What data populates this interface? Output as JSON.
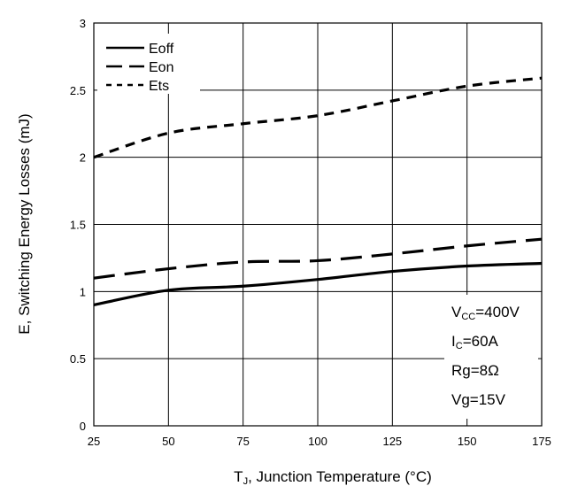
{
  "chart_data": {
    "type": "line",
    "title": "",
    "xlabel": {
      "main": "T",
      "sub": "J",
      "rest": ", Junction Temperature (°C)"
    },
    "ylabel": "E, Switching Energy Losses (mJ)",
    "xlim": [
      25,
      175
    ],
    "ylim": [
      0,
      3
    ],
    "xticks": [
      "25",
      "50",
      "75",
      "100",
      "125",
      "150",
      "175"
    ],
    "yticks": [
      "0",
      "0.5",
      "1",
      "1.5",
      "2",
      "2.5",
      "3"
    ],
    "grid": true,
    "legend_position": "top-left",
    "series": [
      {
        "name": "Eoff",
        "style": "solid",
        "x": [
          25,
          50,
          75,
          100,
          125,
          150,
          175
        ],
        "y": [
          0.9,
          1.01,
          1.04,
          1.09,
          1.15,
          1.19,
          1.21
        ]
      },
      {
        "name": "Eon",
        "style": "long-dash",
        "x": [
          25,
          50,
          75,
          100,
          125,
          150,
          175
        ],
        "y": [
          1.1,
          1.17,
          1.22,
          1.23,
          1.28,
          1.34,
          1.39
        ]
      },
      {
        "name": "Ets",
        "style": "short-dash",
        "x": [
          25,
          50,
          75,
          100,
          125,
          150,
          175
        ],
        "y": [
          2.0,
          2.18,
          2.25,
          2.31,
          2.42,
          2.53,
          2.59
        ]
      }
    ],
    "conditions": [
      {
        "main": "V",
        "sub": "CC",
        "rest": "=400V"
      },
      {
        "main": "I",
        "sub": "C",
        "rest": "=60A"
      },
      {
        "main": "Rg=8Ω",
        "sub": "",
        "rest": ""
      },
      {
        "main": "Vg=15V",
        "sub": "",
        "rest": ""
      }
    ]
  },
  "colors": {
    "line": "#000000",
    "grid": "#000000",
    "background": "#ffffff"
  }
}
